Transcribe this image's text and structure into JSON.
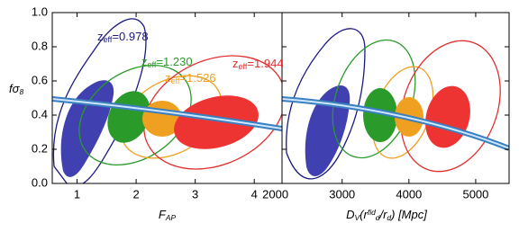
{
  "chart_data": [
    {
      "type": "contour",
      "ylabel": [
        {
          "text": "fσ"
        },
        {
          "text": "8",
          "sub": true
        }
      ],
      "xlabel": [
        {
          "text": "F"
        },
        {
          "text": "AP",
          "sub": true
        }
      ],
      "xlim": [
        0.58,
        4.47
      ],
      "xticks": [
        1,
        2,
        3,
        4
      ],
      "ylim": [
        0,
        1
      ],
      "yticks": [
        {
          "value": 0,
          "label": "0.0"
        },
        {
          "value": 0.2,
          "label": "0.2"
        },
        {
          "value": 0.4,
          "label": "0.4"
        },
        {
          "value": 0.6,
          "label": "0.6"
        },
        {
          "value": 0.8,
          "label": "0.8"
        },
        {
          "value": 1,
          "label": "1.0"
        }
      ],
      "annotations": [
        {
          "text": "z",
          "sub": "eff",
          "value": "=0.978",
          "color": "#1a1a80"
        },
        {
          "text": "z",
          "sub": "eff",
          "value": "=1.230",
          "color": "#2a9a2a"
        },
        {
          "text": "z",
          "sub": "eff",
          "value": "=1.526",
          "color": "#f0a020"
        },
        {
          "text": "z",
          "sub": "eff",
          "value": "=1.944",
          "color": "#e03030"
        }
      ]
    },
    {
      "type": "contour",
      "xlabel": [
        {
          "text": "D"
        },
        {
          "text": "V",
          "sub": true
        },
        {
          "text": "(r"
        },
        {
          "text": "fid",
          "sup": true
        },
        {
          "text": "d",
          "sub": true
        },
        {
          "text": "/r"
        },
        {
          "text": "d",
          "sub": true
        },
        {
          "text": ") [Mpc]"
        }
      ],
      "xlim": [
        2100,
        5500
      ],
      "xticks": [
        2000,
        3000,
        4000,
        5000
      ],
      "ylim": [
        0,
        1
      ]
    }
  ]
}
